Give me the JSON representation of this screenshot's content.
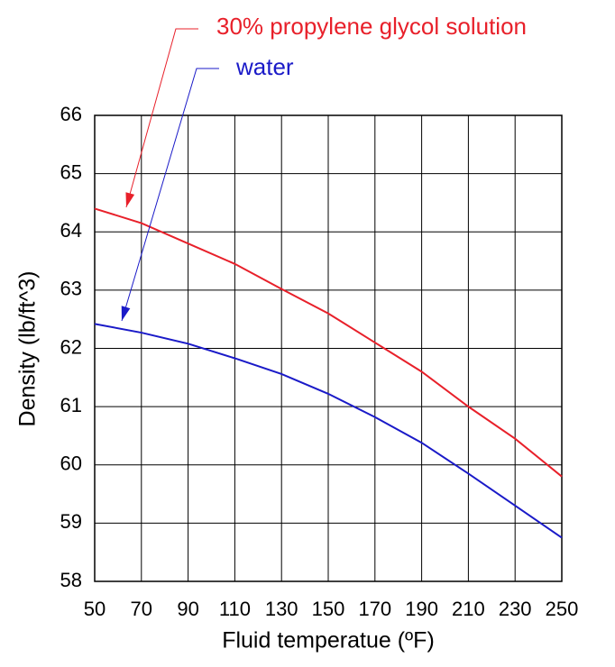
{
  "chart_data": {
    "type": "line",
    "x_label": "Fluid temperatue (ºF)",
    "y_label": "Density (lb/ft^3)",
    "x": [
      50,
      70,
      90,
      110,
      130,
      150,
      170,
      190,
      210,
      230,
      250
    ],
    "series": [
      {
        "name": "30% propylene glycol solution",
        "color": "#e8202a",
        "values": [
          64.4,
          64.15,
          63.8,
          63.45,
          63.02,
          62.6,
          62.1,
          61.6,
          61.0,
          60.45,
          59.8
        ]
      },
      {
        "name": "water",
        "color": "#1a1ac8",
        "values": [
          62.42,
          62.27,
          62.08,
          61.83,
          61.56,
          61.22,
          60.82,
          60.38,
          59.85,
          59.3,
          58.75
        ]
      }
    ],
    "xlim": [
      50,
      250
    ],
    "ylim": [
      58,
      66
    ],
    "xticks": [
      50,
      70,
      90,
      110,
      130,
      150,
      170,
      190,
      210,
      230,
      250
    ],
    "yticks": [
      58,
      59,
      60,
      61,
      62,
      63,
      64,
      65,
      66
    ],
    "grid": true
  }
}
